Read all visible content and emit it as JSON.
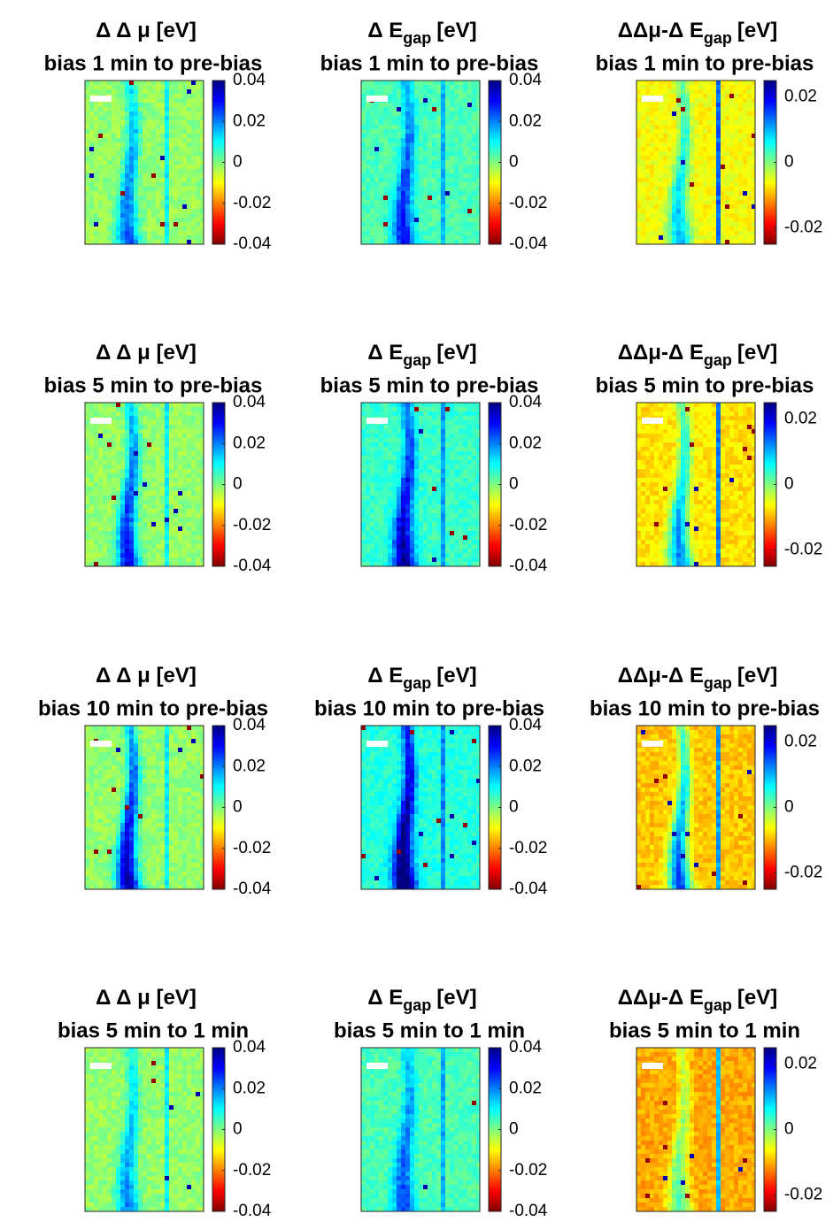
{
  "chart_data": [
    {
      "type": "heatmap",
      "title": "Δ Δ μ [eV]",
      "subtitle": "bias 1 min to pre-bias",
      "colormap": "jet",
      "clim": [
        -0.04,
        0.04
      ],
      "cticks": [
        0.04,
        0.02,
        0,
        -0.02,
        -0.04
      ]
    },
    {
      "type": "heatmap",
      "title": "Δ E",
      "title_subscript": "gap",
      "title_suffix": "[eV]",
      "subtitle": "bias 1 min to pre-bias",
      "colormap": "jet",
      "clim": [
        -0.04,
        0.04
      ],
      "cticks": [
        0.04,
        0.02,
        0,
        -0.02,
        -0.04
      ]
    },
    {
      "type": "heatmap",
      "title": "ΔΔμ-Δ E",
      "title_subscript": "gap",
      "title_suffix": "[eV]",
      "subtitle": "bias 1 min to pre-bias",
      "colormap": "jet",
      "clim": [
        -0.025,
        0.025
      ],
      "cticks": [
        0.02,
        0,
        -0.02
      ]
    },
    {
      "type": "heatmap",
      "title": "Δ Δ μ [eV]",
      "subtitle": "bias 5 min to pre-bias",
      "colormap": "jet",
      "clim": [
        -0.04,
        0.04
      ],
      "cticks": [
        0.04,
        0.02,
        0,
        -0.02,
        -0.04
      ]
    },
    {
      "type": "heatmap",
      "title": "Δ E",
      "title_subscript": "gap",
      "title_suffix": "[eV]",
      "subtitle": "bias 5 min to pre-bias",
      "colormap": "jet",
      "clim": [
        -0.04,
        0.04
      ],
      "cticks": [
        0.04,
        0.02,
        0,
        -0.02,
        -0.04
      ]
    },
    {
      "type": "heatmap",
      "title": "ΔΔμ-Δ E",
      "title_subscript": "gap",
      "title_suffix": "[eV]",
      "subtitle": "bias 5 min to pre-bias",
      "colormap": "jet",
      "clim": [
        -0.025,
        0.025
      ],
      "cticks": [
        0.02,
        0,
        -0.02
      ]
    },
    {
      "type": "heatmap",
      "title": "Δ Δ μ [eV]",
      "subtitle": "bias 10 min to pre-bias",
      "colormap": "jet",
      "clim": [
        -0.04,
        0.04
      ],
      "cticks": [
        0.04,
        0.02,
        0,
        -0.02,
        -0.04
      ]
    },
    {
      "type": "heatmap",
      "title": "Δ E",
      "title_subscript": "gap",
      "title_suffix": "[eV]",
      "subtitle": "bias 10 min to pre-bias",
      "colormap": "jet",
      "clim": [
        -0.04,
        0.04
      ],
      "cticks": [
        0.04,
        0.02,
        0,
        -0.02,
        -0.04
      ]
    },
    {
      "type": "heatmap",
      "title": "ΔΔμ-Δ E",
      "title_subscript": "gap",
      "title_suffix": "[eV]",
      "subtitle": "bias 10 min to pre-bias",
      "colormap": "jet",
      "clim": [
        -0.025,
        0.025
      ],
      "cticks": [
        0.02,
        0,
        -0.02
      ]
    },
    {
      "type": "heatmap",
      "title": "Δ Δ μ [eV]",
      "subtitle": "bias 5 min to 1 min",
      "colormap": "jet",
      "clim": [
        -0.04,
        0.04
      ],
      "cticks": [
        0.04,
        0.02,
        0,
        -0.02,
        -0.04
      ]
    },
    {
      "type": "heatmap",
      "title": "Δ E",
      "title_subscript": "gap",
      "title_suffix": "[eV]",
      "subtitle": "bias 5 min to 1 min",
      "colormap": "jet",
      "clim": [
        -0.04,
        0.04
      ],
      "cticks": [
        0.04,
        0.02,
        0,
        -0.02,
        -0.04
      ]
    },
    {
      "type": "heatmap",
      "title": "ΔΔμ-Δ E",
      "title_subscript": "gap",
      "title_suffix": "[eV]",
      "subtitle": "bias 5 min to 1 min",
      "colormap": "jet",
      "clim": [
        -0.025,
        0.025
      ],
      "cticks": [
        0.02,
        0,
        -0.02
      ]
    }
  ]
}
